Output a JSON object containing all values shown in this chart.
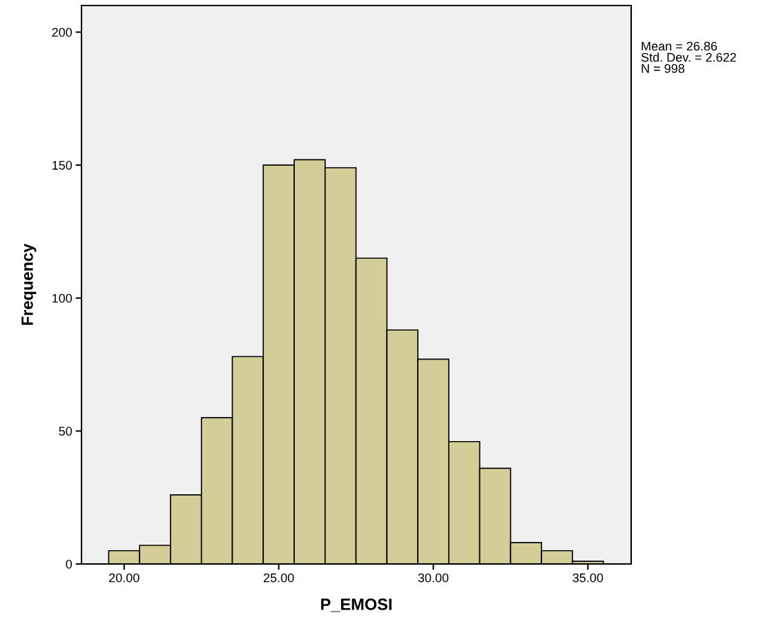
{
  "chart_data": {
    "type": "histogram",
    "xlabel": "P_EMOSI",
    "ylabel": "Frequency",
    "bins": [
      19.5,
      20.5,
      21.5,
      22.5,
      23.5,
      24.5,
      25.5,
      26.5,
      27.5,
      28.5,
      29.5,
      30.5,
      31.5,
      32.5,
      33.5,
      34.5,
      35.5
    ],
    "values": [
      5,
      7,
      26,
      55,
      78,
      150,
      152,
      149,
      115,
      88,
      77,
      46,
      36,
      8,
      5,
      1
    ],
    "color": "#d3ce97",
    "xlim": [
      18.62,
      36.4
    ],
    "xticks": [
      {
        "value": 20,
        "label": "20.00"
      },
      {
        "value": 25,
        "label": "25.00"
      },
      {
        "value": 30,
        "label": "30.00"
      },
      {
        "value": 35,
        "label": "35.00"
      }
    ],
    "ylim": [
      0,
      210
    ],
    "yticks": [
      0,
      50,
      100,
      150,
      200
    ],
    "grid": false,
    "annotations": [
      "Mean = 26.86\nStd. Dev. = 2.622\nN = 998"
    ]
  }
}
